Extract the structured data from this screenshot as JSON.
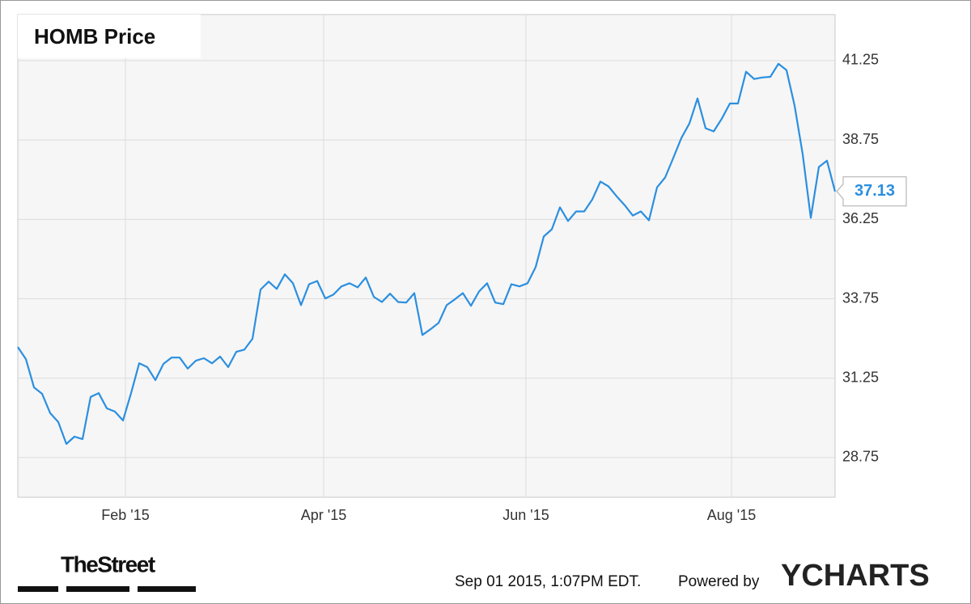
{
  "chart_data": {
    "type": "line",
    "title": "HOMB Price",
    "series": [
      {
        "name": "HOMB",
        "color": "#2b8fe0",
        "values": [
          32.23,
          31.85,
          30.96,
          30.76,
          30.15,
          29.87,
          29.18,
          29.41,
          29.33,
          30.66,
          30.78,
          30.3,
          30.2,
          29.92,
          30.78,
          31.72,
          31.6,
          31.19,
          31.7,
          31.9,
          31.9,
          31.55,
          31.8,
          31.88,
          31.72,
          31.93,
          31.6,
          32.08,
          32.15,
          32.49,
          34.04,
          34.29,
          34.06,
          34.52,
          34.24,
          33.55,
          34.21,
          34.31,
          33.76,
          33.88,
          34.14,
          34.24,
          34.11,
          34.42,
          33.81,
          33.65,
          33.91,
          33.65,
          33.63,
          33.93,
          32.61,
          32.79,
          32.99,
          33.55,
          33.73,
          33.93,
          33.53,
          33.98,
          34.24,
          33.63,
          33.58,
          34.21,
          34.14,
          34.24,
          34.75,
          35.71,
          35.94,
          36.63,
          36.2,
          36.5,
          36.5,
          36.88,
          37.44,
          37.29,
          36.98,
          36.7,
          36.37,
          36.5,
          36.22,
          37.26,
          37.57,
          38.18,
          38.81,
          39.27,
          40.06,
          39.12,
          39.02,
          39.42,
          39.9,
          39.9,
          40.9,
          40.67,
          40.72,
          40.74,
          41.15,
          40.95,
          39.83,
          38.3,
          36.3,
          37.9,
          38.1,
          37.13
        ]
      }
    ],
    "xlim": [
      0,
      101
    ],
    "xticks": [
      {
        "value": 13.3,
        "label": "Feb '15"
      },
      {
        "value": 37.8,
        "label": "Apr '15"
      },
      {
        "value": 62.8,
        "label": "Jun '15"
      },
      {
        "value": 88.2,
        "label": "Aug '15"
      }
    ],
    "ylim": [
      27.5,
      42.7
    ],
    "yticks": [
      28.75,
      31.25,
      33.75,
      36.25,
      38.75,
      41.25
    ],
    "grid": true
  },
  "footer": {
    "logo": "TheStreet",
    "timestamp": "Sep 01 2015, 1:07PM EDT.",
    "powered_by": "Powered by",
    "brand": "YCHARTS"
  }
}
